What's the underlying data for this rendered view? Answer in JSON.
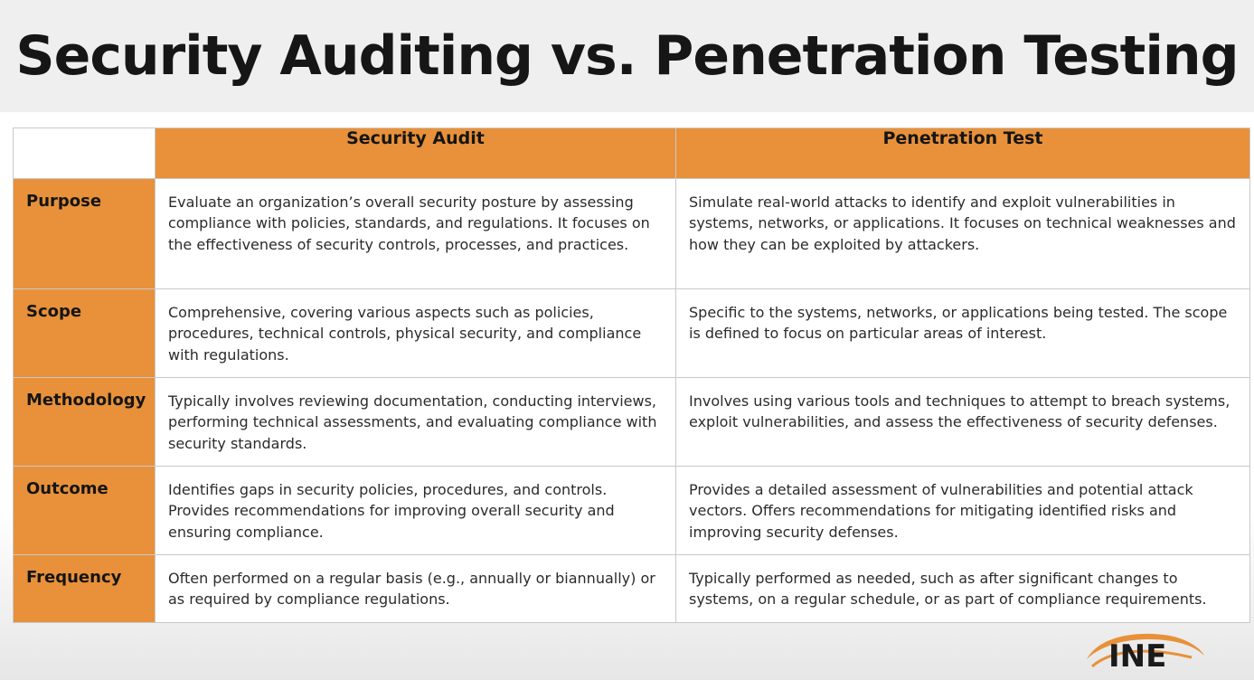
{
  "title": "Security Auditing vs. Penetration Testing",
  "table": {
    "columns": [
      "Security Audit",
      "Penetration Test"
    ],
    "rows": [
      {
        "label": "Purpose",
        "audit": "Evaluate an organization’s overall security posture by assessing compliance with policies, standards, and regulations. It focuses on the effectiveness of security controls, processes, and practices.",
        "pentest": "Simulate real-world attacks to identify and exploit vulnerabilities in systems, networks, or applications. It focuses on technical weaknesses and how they can be exploited by attackers."
      },
      {
        "label": "Scope",
        "audit": "Comprehensive, covering various aspects such as policies, procedures, technical controls, physical security, and compliance with regulations.",
        "pentest": "Specific to the systems, networks, or applications being tested. The scope is defined to focus on particular areas of interest."
      },
      {
        "label": "Methodology",
        "audit": "Typically involves reviewing documentation, conducting interviews, performing technical assessments, and evaluating compliance with security standards.",
        "pentest": "Involves using various tools and techniques to attempt to breach systems, exploit vulnerabilities, and assess the effectiveness of security defenses."
      },
      {
        "label": "Outcome",
        "audit": "Identifies gaps in security policies, procedures, and controls. Provides recommendations for improving overall security and ensuring compliance.",
        "pentest": "Provides a detailed assessment of vulnerabilities and potential attack vectors. Offers recommendations for mitigating identified risks and improving security defenses."
      },
      {
        "label": "Frequency",
        "audit": "Often performed on a regular basis (e.g., annually or biannually) or as required by compliance regulations.",
        "pentest": "Typically performed as needed, such as after significant changes to systems, on a regular schedule, or as part of compliance requirements."
      }
    ]
  },
  "logo": {
    "text": "INE",
    "icon": "ine-logo-icon",
    "text_color": "#1a1a1a",
    "accent_color": "#e8913a"
  },
  "colors": {
    "header_fill": "#e8913a",
    "title_text": "#161616",
    "cell_text": "#2b2b2b",
    "grid_line": "#c9c9c9"
  }
}
